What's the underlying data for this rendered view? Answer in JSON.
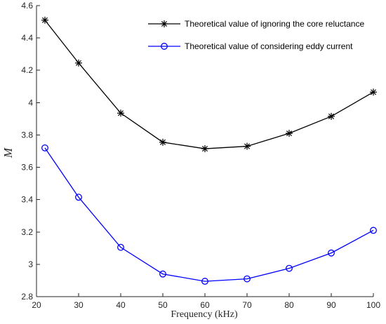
{
  "chart_data": {
    "type": "line",
    "title": "",
    "xlabel": "Frequency (kHz)",
    "ylabel": "M",
    "xlim": [
      20,
      100
    ],
    "ylim": [
      2.8,
      4.6
    ],
    "xticks": [
      20,
      30,
      40,
      50,
      60,
      70,
      80,
      90,
      100
    ],
    "yticks": [
      2.8,
      3,
      3.2,
      3.4,
      3.6,
      3.8,
      4,
      4.2,
      4.4,
      4.6
    ],
    "xtick_labels": [
      "20",
      "30",
      "40",
      "50",
      "60",
      "70",
      "80",
      "90",
      "100"
    ],
    "ytick_labels": [
      "2.8",
      "3",
      "3.2",
      "3.4",
      "3.6",
      "3.8",
      "4",
      "4.2",
      "4.4",
      "4.6"
    ],
    "grid": false,
    "legend_position": "top-right",
    "x": [
      22,
      30,
      40,
      50,
      60,
      70,
      80,
      90,
      100
    ],
    "series": [
      {
        "name": "Theoretical value of ignoring the core reluctance",
        "values": [
          4.51,
          4.245,
          3.935,
          3.755,
          3.715,
          3.73,
          3.81,
          3.915,
          4.065
        ],
        "color": "#000000",
        "marker": "asterisk"
      },
      {
        "name": "Theoretical value of considering eddy current",
        "values": [
          3.72,
          3.415,
          3.105,
          2.94,
          2.895,
          2.91,
          2.975,
          3.07,
          3.21
        ],
        "color": "#0000ff",
        "marker": "circle"
      }
    ]
  }
}
